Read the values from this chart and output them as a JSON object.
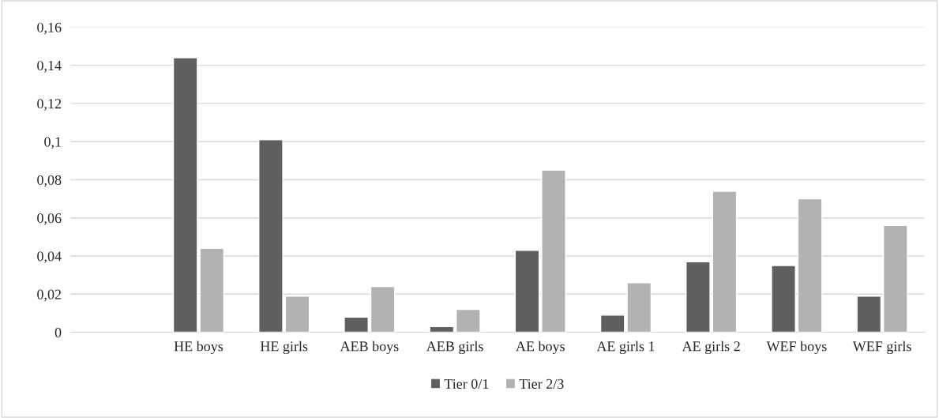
{
  "chart_data": {
    "type": "bar",
    "categories": [
      null,
      "HE boys",
      "HE girls",
      "AEB boys",
      "AEB girls",
      "AE boys",
      "AE girls 1",
      "AE girls 2",
      "WEF boys",
      "WEF girls"
    ],
    "series": [
      {
        "name": "Tier 0/1",
        "color": "#5f5f5f",
        "values": [
          null,
          0.144,
          0.101,
          0.008,
          0.003,
          0.043,
          0.009,
          0.037,
          0.035,
          0.019
        ]
      },
      {
        "name": "Tier 2/3",
        "color": "#b2b2b2",
        "values": [
          null,
          0.044,
          0.019,
          0.024,
          0.012,
          0.085,
          0.026,
          0.074,
          0.07,
          0.056
        ]
      }
    ],
    "ylim": [
      0,
      0.16
    ],
    "yticks": [
      {
        "value": 0,
        "label": "0"
      },
      {
        "value": 0.02,
        "label": "0,02"
      },
      {
        "value": 0.04,
        "label": "0,04"
      },
      {
        "value": 0.06,
        "label": "0,06"
      },
      {
        "value": 0.08,
        "label": "0,08"
      },
      {
        "value": 0.1,
        "label": "0,1"
      },
      {
        "value": 0.12,
        "label": "0,12"
      },
      {
        "value": 0.14,
        "label": "0,14"
      },
      {
        "value": 0.16,
        "label": "0,16"
      }
    ],
    "grid": "y",
    "legend": "bottom"
  }
}
